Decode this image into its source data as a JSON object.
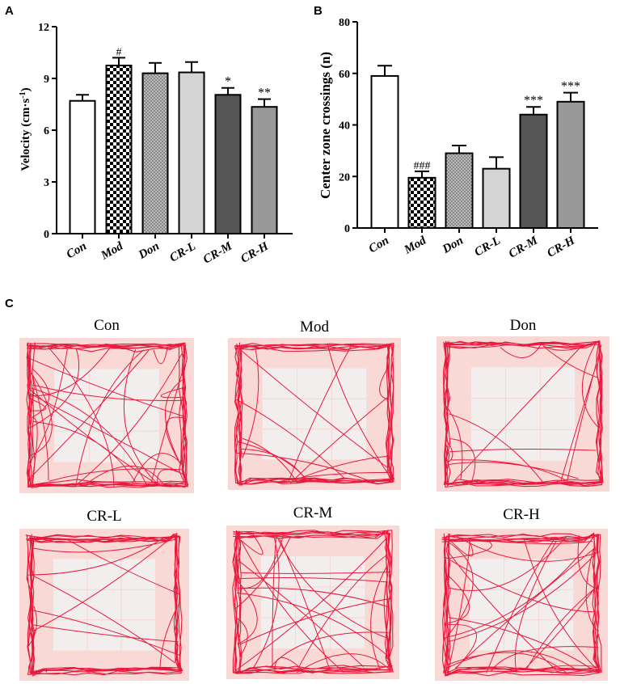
{
  "chart_data": [
    {
      "panel": "A",
      "type": "bar",
      "ylabel": "Velocity (cm·s",
      "ylabel_sup": "-1",
      "ylabel_close": ")",
      "categories": [
        "Con",
        "Mod",
        "Don",
        "CR-L",
        "CR-M",
        "CR-H"
      ],
      "values": [
        7.7,
        9.75,
        9.3,
        9.35,
        8.05,
        7.35
      ],
      "errors": [
        0.35,
        0.45,
        0.6,
        0.6,
        0.4,
        0.45
      ],
      "annotations": [
        "",
        "#",
        "",
        "",
        "*",
        "**"
      ],
      "ylim": [
        0,
        12
      ],
      "yticks": [
        "0",
        "3",
        "6",
        "9",
        "12"
      ],
      "yticks_values": [
        0,
        3,
        6,
        9,
        12
      ]
    },
    {
      "panel": "B",
      "type": "bar",
      "ylabel": "Center zone crossings (n)",
      "categories": [
        "Con",
        "Mod",
        "Don",
        "CR-L",
        "CR-M",
        "CR-H"
      ],
      "values": [
        59,
        19.5,
        29,
        23,
        44,
        49
      ],
      "errors": [
        4,
        2.5,
        3,
        4.5,
        3,
        3.5
      ],
      "annotations": [
        "",
        "###",
        "",
        "",
        "***",
        "***"
      ],
      "ylim": [
        0,
        80
      ],
      "yticks": [
        "0",
        "20",
        "40",
        "60",
        "80"
      ],
      "yticks_values": [
        0,
        20,
        40,
        60,
        80
      ]
    }
  ],
  "panel_c": {
    "letter": "C",
    "tracks": [
      {
        "title": "Con",
        "density": 28,
        "edge": 0.55,
        "seed": 11
      },
      {
        "title": "Mod",
        "density": 14,
        "edge": 0.85,
        "seed": 23
      },
      {
        "title": "Don",
        "density": 16,
        "edge": 0.8,
        "seed": 37
      },
      {
        "title": "CR-L",
        "density": 14,
        "edge": 0.85,
        "seed": 41
      },
      {
        "title": "CR-M",
        "density": 22,
        "edge": 0.65,
        "seed": 53
      },
      {
        "title": "CR-H",
        "density": 26,
        "edge": 0.6,
        "seed": 67
      }
    ]
  },
  "colors": {
    "axis": "#000000",
    "bar_con": "#ffffff",
    "bar_don": "#8a8a8a",
    "bar_crl": "#d4d4d4",
    "bar_crm": "#555555",
    "bar_crh": "#999999",
    "track_line": "#e8193c",
    "arena_outer": "#f9d9d5",
    "arena_center": "#f2eeee"
  }
}
